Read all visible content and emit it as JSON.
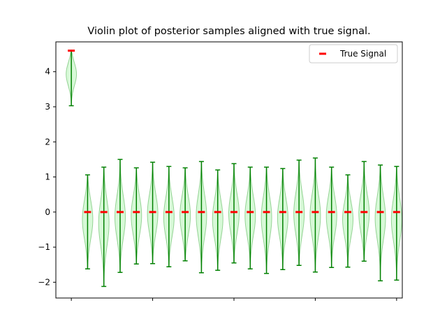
{
  "chart_data": {
    "type": "violin",
    "title": "Violin plot of posterior samples aligned with true signal.",
    "xlabel": "",
    "ylabel": "",
    "ylim": [
      -2.45,
      4.85
    ],
    "xlim": [
      -0.95,
      20.35
    ],
    "yticks": [
      -2,
      -1,
      0,
      1,
      2,
      3,
      4
    ],
    "ytick_labels": [
      "−2",
      "−1",
      "0",
      "1",
      "2",
      "3",
      "4"
    ],
    "xticks": [
      0,
      5,
      10,
      15,
      20
    ],
    "xtick_labels": [
      "",
      "",
      "",
      "",
      ""
    ],
    "grid": false,
    "legend": {
      "position": "top-right",
      "entries": [
        "True Signal"
      ]
    },
    "colors": {
      "violin_fill": "#90ee90",
      "violin_edge": "#5cb85c",
      "whisker": "#008000",
      "true_signal": "#ff0000"
    },
    "violins": [
      {
        "x": 0,
        "min": 3.03,
        "max": 4.6,
        "median": 3.95,
        "spread": 0.35
      },
      {
        "x": 1,
        "min": -1.62,
        "max": 1.06,
        "median": -0.2,
        "spread": 0.6
      },
      {
        "x": 2,
        "min": -2.12,
        "max": 1.28,
        "median": -0.3,
        "spread": 0.7
      },
      {
        "x": 3,
        "min": -1.72,
        "max": 1.5,
        "median": -0.15,
        "spread": 0.65
      },
      {
        "x": 4,
        "min": -1.48,
        "max": 1.26,
        "median": -0.1,
        "spread": 0.6
      },
      {
        "x": 5,
        "min": -1.47,
        "max": 1.42,
        "median": -0.05,
        "spread": 0.6
      },
      {
        "x": 6,
        "min": -1.56,
        "max": 1.3,
        "median": -0.15,
        "spread": 0.6
      },
      {
        "x": 7,
        "min": -1.39,
        "max": 1.26,
        "median": -0.1,
        "spread": 0.6
      },
      {
        "x": 8,
        "min": -1.73,
        "max": 1.44,
        "median": -0.1,
        "spread": 0.65
      },
      {
        "x": 9,
        "min": -1.66,
        "max": 1.2,
        "median": -0.2,
        "spread": 0.6
      },
      {
        "x": 10,
        "min": -1.45,
        "max": 1.38,
        "median": -0.05,
        "spread": 0.6
      },
      {
        "x": 11,
        "min": -1.62,
        "max": 1.28,
        "median": -0.1,
        "spread": 0.6
      },
      {
        "x": 12,
        "min": -1.75,
        "max": 1.28,
        "median": -0.15,
        "spread": 0.65
      },
      {
        "x": 13,
        "min": -1.64,
        "max": 1.24,
        "median": -0.15,
        "spread": 0.6
      },
      {
        "x": 14,
        "min": -1.52,
        "max": 1.48,
        "median": -0.05,
        "spread": 0.65
      },
      {
        "x": 15,
        "min": -1.71,
        "max": 1.54,
        "median": -0.1,
        "spread": 0.65
      },
      {
        "x": 16,
        "min": -1.58,
        "max": 1.28,
        "median": -0.1,
        "spread": 0.6
      },
      {
        "x": 17,
        "min": -1.57,
        "max": 1.06,
        "median": -0.2,
        "spread": 0.55
      },
      {
        "x": 18,
        "min": -1.4,
        "max": 1.44,
        "median": -0.05,
        "spread": 0.6
      },
      {
        "x": 19,
        "min": -1.96,
        "max": 1.34,
        "median": -0.15,
        "spread": 0.65
      },
      {
        "x": 20,
        "min": -1.94,
        "max": 1.3,
        "median": -0.2,
        "spread": 0.65
      }
    ],
    "true_signal": {
      "name": "True Signal",
      "x": [
        0,
        1,
        2,
        3,
        4,
        5,
        6,
        7,
        8,
        9,
        10,
        11,
        12,
        13,
        14,
        15,
        16,
        17,
        18,
        19,
        20
      ],
      "y": [
        4.6,
        0,
        0,
        0,
        0,
        0,
        0,
        0,
        0,
        0,
        0,
        0,
        0,
        0,
        0,
        0,
        0,
        0,
        0,
        0,
        0
      ]
    }
  }
}
